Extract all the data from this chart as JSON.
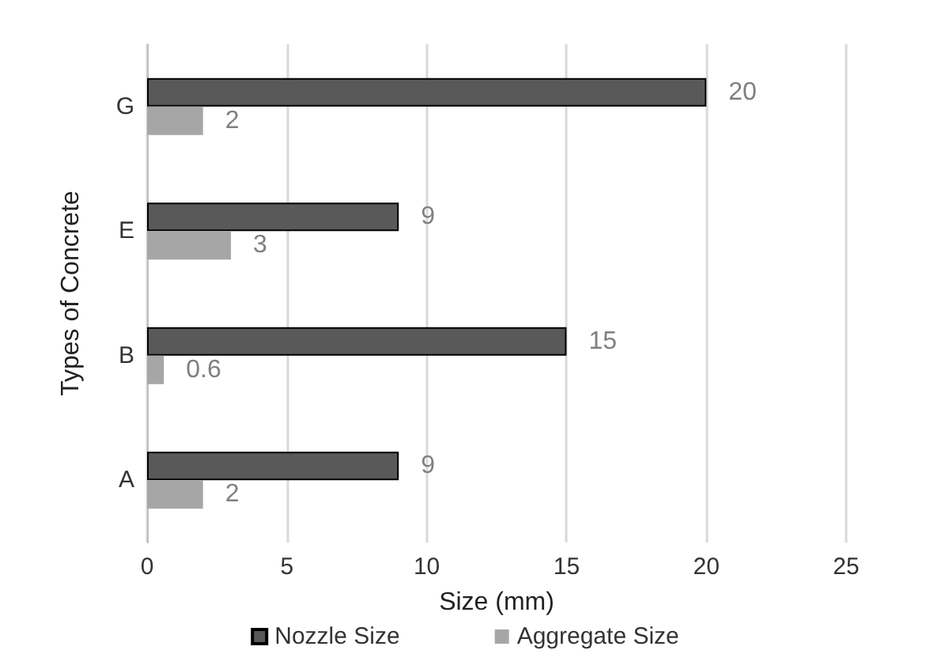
{
  "chart_data": {
    "type": "bar",
    "orientation": "horizontal",
    "categories": [
      "G",
      "E",
      "B",
      "A"
    ],
    "series": [
      {
        "name": "Nozzle Size",
        "color": "#595959",
        "values": [
          20,
          9,
          15,
          9
        ]
      },
      {
        "name": "Aggregate Size",
        "color": "#a6a6a6",
        "values": [
          2,
          3,
          0.6,
          2
        ]
      }
    ],
    "xlabel": "Size (mm)",
    "ylabel": "Types of Concrete",
    "xlim": [
      0,
      25
    ],
    "xticks": [
      0,
      5,
      10,
      15,
      20,
      25
    ],
    "grid": "x",
    "legend": "bottom",
    "data_labels": true
  }
}
